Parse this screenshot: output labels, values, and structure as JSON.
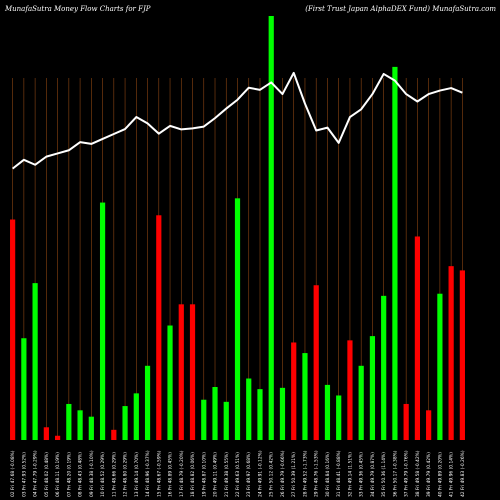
{
  "header": {
    "left_title": "MunafaSutra  Money Flow  Charts for FJP",
    "right_title": "(First Trust Japan  AlphaDEX  Fund) MunafaSutra.com"
  },
  "colors": {
    "background": "#000000",
    "up_bar": "#00ff00",
    "down_bar": "#ff0000",
    "grid": "#8b4513",
    "price_line": "#ffffff"
  },
  "chart_data": {
    "type": "bar",
    "title": "MunafaSutra  Money Flow  Charts for FJP",
    "subtitle": "(First Trust Japan  AlphaDEX  Fund) MunafaSutra.com",
    "xlabel": "",
    "ylabel": "",
    "grid": true,
    "categories": [
      "02 Fri 47.68 (-0.08%)",
      "03 Fri 47.93 (0.52%)",
      "04 Fri 47.79 (-0.29%)",
      "05 Fri 48.02 (0.48%)",
      "06 Fri 48.11 (0.19%)",
      "07 Fri 48.20 (0.19%)",
      "08 Fri 48.43 (0.48%)",
      "09 Fri 48.38 (-0.10%)",
      "10 Fri 48.52 (0.29%)",
      "11 Fri 48.66 (0.29%)",
      "12 Fri 48.80 (0.29%)",
      "13 Fri 49.14 (0.70%)",
      "14 Fri 48.96 (-0.37%)",
      "15 Fri 48.67 (-0.59%)",
      "16 Fri 48.89 (0.45%)",
      "17 Fri 48.79 (-0.20%)",
      "18 Fri 48.82 (0.06%)",
      "19 Fri 48.87 (0.10%)",
      "20 Fri 49.11 (0.49%)",
      "21 Fri 49.38 (0.55%)",
      "22 Fri 49.63 (0.51%)",
      "23 Fri 49.97 (0.68%)",
      "24 Fri 49.91 (-0.12%)",
      "25 Fri 50.12 (0.42%)",
      "26 Fri 49.79 (-0.66%)",
      "27 Fri 50.39 (1.21%)",
      "28 Fri 49.52 (-1.73%)",
      "29 Fri 48.76 (-1.53%)",
      "30 Fri 48.84 (0.16%)",
      "31 Fri 48.41 (-0.88%)",
      "32 Fri 49.14 (1.51%)",
      "33 Fri 49.36 (0.45%)",
      "34 Fri 49.79 (0.87%)",
      "35 Fri 50.36 (1.14%)",
      "36 Fri 50.17 (-0.38%)",
      "37 Fri 49.79 (-0.76%)",
      "38 Fri 49.58 (-0.42%)",
      "39 Fri 49.79 (0.42%)",
      "40 Fri 49.89 (0.20%)",
      "41 Fri 49.96 (0.14%)",
      "42 Fri 49.83 (-0.26%)"
    ],
    "series": [
      {
        "kind": "money_flow_bars",
        "values": [
          52,
          24,
          37,
          3,
          1,
          8.5,
          7,
          5.5,
          56,
          2.4,
          8,
          11,
          17.5,
          53,
          27,
          32,
          32,
          9.5,
          12.5,
          9,
          57,
          14.5,
          12,
          100,
          12.3,
          23,
          20.5,
          36.5,
          13,
          10.5,
          23.5,
          17.5,
          24.5,
          34,
          88,
          8.5,
          48,
          7,
          34.5,
          41,
          40
        ],
        "directions": [
          "down",
          "up",
          "up",
          "down",
          "down",
          "up",
          "up",
          "up",
          "up",
          "down",
          "up",
          "up",
          "up",
          "down",
          "up",
          "down",
          "down",
          "up",
          "up",
          "up",
          "up",
          "up",
          "up",
          "up",
          "up",
          "down",
          "up",
          "down",
          "up",
          "up",
          "down",
          "up",
          "up",
          "up",
          "up",
          "down",
          "down",
          "down",
          "up",
          "down",
          "down"
        ]
      },
      {
        "kind": "price_line",
        "values": [
          47.68,
          47.93,
          47.79,
          48.02,
          48.11,
          48.2,
          48.43,
          48.38,
          48.52,
          48.66,
          48.8,
          49.14,
          48.96,
          48.67,
          48.89,
          48.79,
          48.82,
          48.87,
          49.11,
          49.38,
          49.63,
          49.97,
          49.91,
          50.12,
          49.79,
          50.39,
          49.52,
          48.76,
          48.84,
          48.41,
          49.14,
          49.36,
          49.79,
          50.36,
          50.17,
          49.79,
          49.58,
          49.79,
          49.89,
          49.96,
          49.83
        ]
      }
    ],
    "ylim_bars": [
      0,
      100
    ],
    "ylim_price": [
      40,
      52
    ]
  }
}
